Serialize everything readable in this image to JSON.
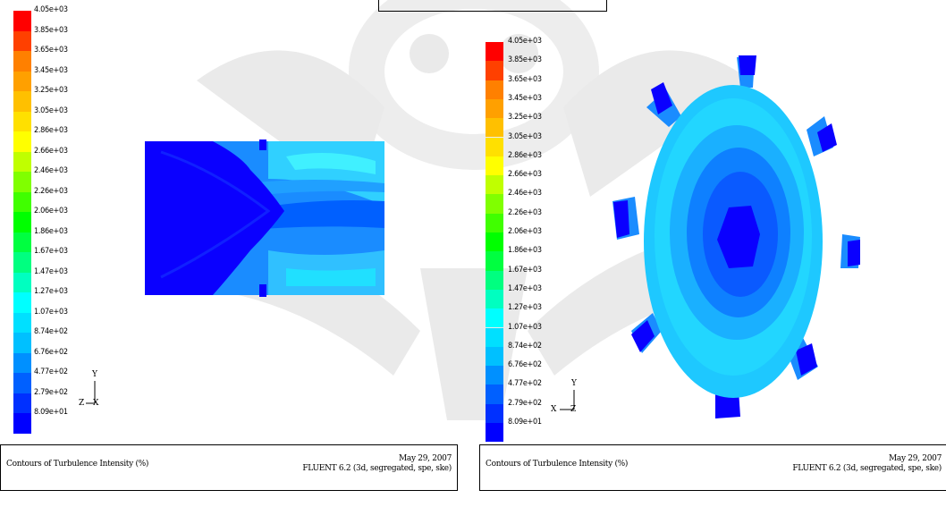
{
  "legend": {
    "labels": [
      "4.05e+03",
      "3.85e+03",
      "3.65e+03",
      "3.45e+03",
      "3.25e+03",
      "3.05e+03",
      "2.86e+03",
      "2.66e+03",
      "2.46e+03",
      "2.26e+03",
      "2.06e+03",
      "1.86e+03",
      "1.67e+03",
      "1.47e+03",
      "1.27e+03",
      "1.07e+03",
      "8.74e+02",
      "6.76e+02",
      "4.77e+02",
      "2.79e+02",
      "8.09e+01"
    ],
    "colors": [
      "#ff0000",
      "#ff4000",
      "#ff8000",
      "#ffa000",
      "#ffc000",
      "#ffe000",
      "#ffff00",
      "#c0ff00",
      "#80ff00",
      "#40ff00",
      "#00ff00",
      "#00ff40",
      "#00ff80",
      "#00ffc0",
      "#00ffff",
      "#00e0ff",
      "#00c0ff",
      "#0090ff",
      "#0060ff",
      "#0030ff",
      "#0000ff"
    ]
  },
  "panels": [
    {
      "caption_title": "Contours of Turbulence Intensity (%)",
      "caption_date": "May 29, 2007",
      "caption_solver": "FLUENT 6.2 (3d, segregated, spe, ske)",
      "axis_up": "Y",
      "axis_right": "X",
      "axis_out": "Z"
    },
    {
      "caption_title": "Contours of Turbulence Intensity (%)",
      "caption_date": "May 29, 2007",
      "caption_solver": "FLUENT 6.2 (3d, segregated, spe, ske)",
      "axis_up": "Y",
      "axis_left": "X",
      "axis_out": "Z"
    }
  ]
}
